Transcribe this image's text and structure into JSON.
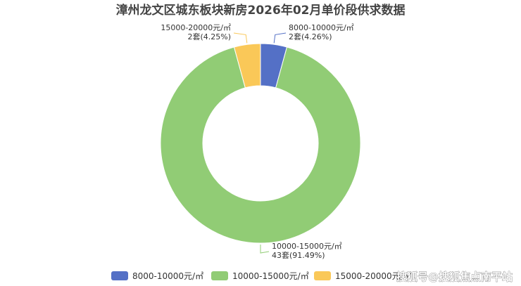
{
  "chart_data": {
    "type": "pie",
    "variant": "donut",
    "title": "漳州龙文区城东板块新房2026年02月单价段供求数据",
    "categories": [
      "8000-10000元/㎡",
      "10000-15000元/㎡",
      "15000-20000元/㎡"
    ],
    "values": [
      2,
      43,
      2
    ],
    "units": [
      "2套",
      "43套",
      "2套"
    ],
    "percents": [
      "(4.26%)",
      "(91.49%)",
      "(4.25%)"
    ],
    "colors": [
      "#5470c6",
      "#91cc75",
      "#fac858"
    ],
    "legend_position": "bottom"
  },
  "watermark": "搜狐号@搜狐焦点南平站"
}
